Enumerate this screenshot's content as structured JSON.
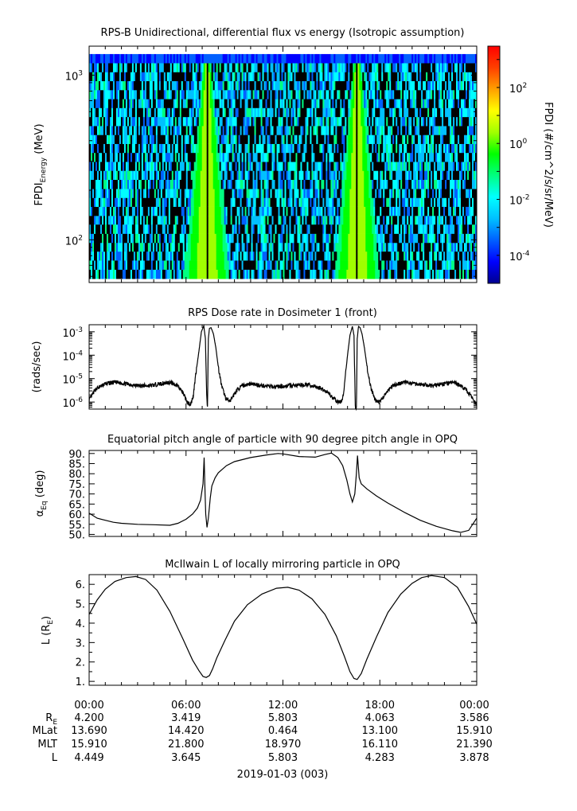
{
  "chart_data": [
    {
      "id": "spectrogram",
      "type": "heatmap",
      "title": "RPS-B  Unidirectional, differential flux vs energy (Isotropic assumption)",
      "ylabel": "FPDI",
      "ylabel_sub": "Energy",
      "ylabel_unit": " (MeV)",
      "yscale": "log",
      "ylim": [
        55,
        1500
      ],
      "xlim": [
        0,
        24
      ],
      "yticks": [
        {
          "value": 100,
          "base": "10",
          "exp": "2"
        },
        {
          "value": 1000,
          "base": "10",
          "exp": "3"
        }
      ],
      "energy_bin_edges": [
        58,
        66,
        75,
        85,
        96,
        109,
        124,
        140,
        159,
        180,
        204,
        232,
        263,
        298,
        338,
        383,
        434,
        492,
        558,
        633,
        717,
        813,
        922,
        1045,
        1185,
        1343
      ],
      "belt_crossings_hours": [
        7.3,
        16.6
      ],
      "colorbar": {
        "label": "FPDI (#/cm^2/s/sr/MeV)",
        "scale": "log",
        "range": [
          1e-05,
          3000
        ],
        "ticks": [
          {
            "value": 0.0001,
            "base": "10",
            "exp": "-4"
          },
          {
            "value": 0.01,
            "base": "10",
            "exp": "-2"
          },
          {
            "value": 1,
            "base": "10",
            "exp": "0"
          },
          {
            "value": 100,
            "base": "10",
            "exp": "2"
          }
        ],
        "colors": [
          "#000090",
          "#0000ff",
          "#0060ff",
          "#00c0ff",
          "#00ffff",
          "#00ff80",
          "#00ff00",
          "#a0ff00",
          "#ffff00",
          "#ffa000",
          "#ff4000",
          "#ff0000"
        ]
      }
    },
    {
      "id": "dose",
      "type": "line",
      "title": "RPS  Dose rate in Dosimeter 1 (front)",
      "ylabel": "(rads/sec)",
      "yscale": "log",
      "ylim": [
        5e-07,
        0.002
      ],
      "xlim": [
        0,
        24
      ],
      "yticks": [
        {
          "value": 1e-06,
          "base": "10",
          "exp": "-6"
        },
        {
          "value": 1e-05,
          "base": "10",
          "exp": "-5"
        },
        {
          "value": 0.0001,
          "base": "10",
          "exp": "-4"
        },
        {
          "value": 0.001,
          "base": "10",
          "exp": "-3"
        }
      ],
      "x": [
        0,
        0.4,
        1.0,
        1.6,
        2.3,
        3.0,
        3.8,
        4.4,
        5.0,
        5.5,
        5.8,
        6.1,
        6.3,
        6.45,
        6.6,
        6.8,
        6.95,
        7.1,
        7.2,
        7.28,
        7.33,
        7.38,
        7.45,
        7.55,
        7.7,
        7.85,
        8.0,
        8.2,
        8.45,
        8.7,
        8.95,
        9.2,
        9.5,
        10.0,
        10.7,
        11.5,
        12.5,
        13.5,
        14.3,
        14.8,
        15.1,
        15.4,
        15.6,
        15.75,
        15.85,
        16.0,
        16.15,
        16.3,
        16.4,
        16.48,
        16.55,
        16.6,
        16.68,
        16.78,
        16.9,
        17.05,
        17.25,
        17.45,
        17.7,
        18.0,
        18.3,
        18.8,
        19.5,
        20.3,
        21.2,
        22.0,
        22.6,
        23.0,
        23.4,
        23.7,
        24.0
      ],
      "y": [
        1.2e-06,
        3.5e-06,
        6e-06,
        7e-06,
        6e-06,
        5e-06,
        5e-06,
        6e-06,
        7e-06,
        5e-06,
        2.5e-06,
        9e-07,
        8e-07,
        2e-06,
        1.5e-05,
        0.00015,
        0.001,
        0.0018,
        0.0005,
        2e-06,
        6e-07,
        0.0005,
        0.0014,
        0.0015,
        0.0008,
        0.0002,
        3e-05,
        5e-06,
        1.5e-06,
        1e-06,
        2e-06,
        3.5e-06,
        5e-06,
        6e-06,
        5e-06,
        4.5e-06,
        5e-06,
        5.5e-06,
        4e-06,
        2.5e-06,
        1.5e-06,
        1e-06,
        1e-06,
        2e-06,
        1e-05,
        0.0001,
        0.0007,
        0.0017,
        0.0007,
        6e-07,
        6e-07,
        0.0005,
        0.0017,
        0.0015,
        0.0008,
        0.0002,
        2e-05,
        4e-06,
        1.2e-06,
        1e-06,
        2e-06,
        5e-06,
        7e-06,
        6e-06,
        5e-06,
        6e-06,
        7e-06,
        5e-06,
        3e-06,
        1.5e-06,
        9e-07
      ]
    },
    {
      "id": "pitch",
      "type": "line",
      "title": "Equatorial pitch angle of particle with 90 degree pitch angle in OPQ",
      "ylabel": "α",
      "ylabel_sub": "Eq",
      "ylabel_unit": " (deg)",
      "ylim": [
        49,
        91.5
      ],
      "xlim": [
        0,
        24
      ],
      "yticks": [
        {
          "value": 50,
          "label": "50."
        },
        {
          "value": 55,
          "label": "55."
        },
        {
          "value": 60,
          "label": "60."
        },
        {
          "value": 65,
          "label": "65."
        },
        {
          "value": 70,
          "label": "70."
        },
        {
          "value": 75,
          "label": "75."
        },
        {
          "value": 80,
          "label": "80."
        },
        {
          "value": 85,
          "label": "85."
        },
        {
          "value": 90,
          "label": "90."
        }
      ],
      "x": [
        0,
        0.5,
        1.0,
        1.5,
        2.0,
        3.0,
        4.0,
        5.0,
        5.5,
        6.0,
        6.4,
        6.7,
        6.9,
        7.05,
        7.12,
        7.18,
        7.22,
        7.3,
        7.38,
        7.44,
        7.5,
        7.6,
        7.8,
        8.0,
        8.5,
        9.0,
        10.0,
        11.0,
        11.7,
        12.0,
        13.0,
        14.0,
        14.6,
        15.0,
        15.4,
        15.7,
        15.95,
        16.15,
        16.3,
        16.45,
        16.55,
        16.62,
        16.72,
        16.85,
        17.2,
        17.8,
        18.5,
        19.5,
        20.5,
        21.5,
        22.5,
        23.0,
        23.5,
        24.0
      ],
      "y": [
        60.5,
        58,
        57,
        56,
        55.5,
        55,
        54.8,
        54.5,
        55.5,
        57.5,
        60,
        63,
        67,
        75,
        88,
        70,
        60,
        53.5,
        58,
        63,
        68,
        74,
        78,
        80.5,
        84,
        86,
        88,
        89.3,
        90,
        89.8,
        88.5,
        88.2,
        89.5,
        90.2,
        88,
        84,
        77,
        70,
        66,
        70,
        80,
        89,
        78,
        75,
        72.5,
        69,
        65.5,
        61,
        57,
        54,
        51.8,
        51,
        52,
        58
      ]
    },
    {
      "id": "lshell",
      "type": "line",
      "title": "McIlwain L of locally mirroring particle in OPQ",
      "ylabel": "L (R",
      "ylabel_sub": "E",
      "ylabel_unit": ")",
      "ylim": [
        0.8,
        6.5
      ],
      "xlim": [
        0,
        24
      ],
      "yticks": [
        {
          "value": 1,
          "label": "1."
        },
        {
          "value": 2,
          "label": "2."
        },
        {
          "value": 3,
          "label": "3."
        },
        {
          "value": 4,
          "label": "4."
        },
        {
          "value": 5,
          "label": "5."
        },
        {
          "value": 6,
          "label": "6."
        }
      ],
      "x": [
        0,
        0.5,
        1.0,
        1.6,
        2.3,
        2.9,
        3.5,
        4.2,
        5.0,
        5.8,
        6.4,
        6.8,
        7.05,
        7.25,
        7.45,
        7.65,
        7.9,
        8.4,
        9.0,
        9.8,
        10.7,
        11.6,
        12.3,
        13.0,
        13.8,
        14.6,
        15.3,
        15.8,
        16.15,
        16.4,
        16.6,
        16.85,
        17.2,
        17.8,
        18.5,
        19.3,
        20.0,
        20.6,
        21.2,
        22.0,
        22.8,
        23.5,
        24.0
      ],
      "y": [
        4.45,
        5.2,
        5.75,
        6.15,
        6.35,
        6.4,
        6.25,
        5.7,
        4.6,
        3.2,
        2.1,
        1.55,
        1.25,
        1.2,
        1.3,
        1.65,
        2.2,
        3.1,
        4.1,
        4.95,
        5.5,
        5.8,
        5.85,
        5.7,
        5.25,
        4.45,
        3.35,
        2.3,
        1.5,
        1.15,
        1.1,
        1.4,
        2.15,
        3.3,
        4.55,
        5.5,
        6.05,
        6.35,
        6.45,
        6.35,
        5.85,
        4.85,
        3.95
      ]
    }
  ],
  "time_axis": {
    "ticks": [
      {
        "hour": 0,
        "label": "00:00",
        "RE": "4.200",
        "MLat": "13.690",
        "MLT": "15.910",
        "L": "4.449"
      },
      {
        "hour": 6,
        "label": "06:00",
        "RE": "3.419",
        "MLat": "14.420",
        "MLT": "21.800",
        "L": "3.645"
      },
      {
        "hour": 12,
        "label": "12:00",
        "RE": "5.803",
        "MLat": "0.464",
        "MLT": "18.970",
        "L": "5.803"
      },
      {
        "hour": 18,
        "label": "18:00",
        "RE": "4.063",
        "MLat": "13.100",
        "MLT": "16.110",
        "L": "4.283"
      },
      {
        "hour": 24,
        "label": "00:00",
        "RE": "3.586",
        "MLat": "15.910",
        "MLT": "21.390",
        "L": "3.878"
      }
    ],
    "row_labels": {
      "RE": "R",
      "RE_sub": "E",
      "MLat": "MLat",
      "MLT": "MLT",
      "L": "L"
    },
    "date_label": "2019-01-03 (003)"
  }
}
